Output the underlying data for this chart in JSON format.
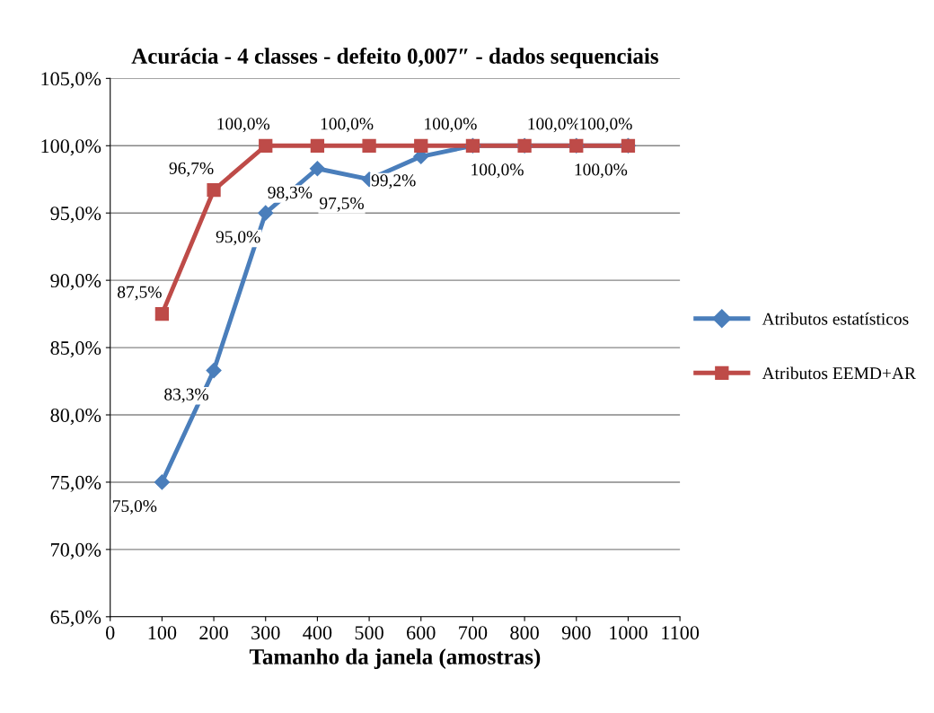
{
  "chart_data": {
    "type": "line",
    "title": "Acurácia - 4 classes - defeito 0,007″ - dados sequenciais",
    "xlabel": "Tamanho da janela (amostras)",
    "x": [
      100,
      200,
      300,
      400,
      500,
      600,
      700,
      800,
      900,
      1000
    ],
    "series": [
      {
        "name": "Atributos estatísticos",
        "color": "#4a7ebb",
        "marker": "diamond",
        "values": [
          75.0,
          83.3,
          95.0,
          98.3,
          97.5,
          99.2,
          100.0,
          100.0,
          100.0,
          100.0
        ],
        "value_labels": [
          "75,0%",
          "83,3%",
          "95,0%",
          "98,3%",
          "97,5%",
          "99,2%",
          null,
          "100,0%",
          null,
          "100,0%"
        ]
      },
      {
        "name": "Atributos EEMD+AR",
        "color": "#be4b48",
        "marker": "square",
        "values": [
          87.5,
          96.7,
          100.0,
          100.0,
          100.0,
          100.0,
          100.0,
          100.0,
          100.0,
          100.0
        ],
        "value_labels": [
          "87,5%",
          "96,7%",
          "100,0%",
          null,
          "100,0%",
          null,
          "100,0%",
          null,
          "100,0%",
          "100,0%"
        ]
      }
    ],
    "xlim": [
      0,
      1100
    ],
    "xticks": [
      0,
      100,
      200,
      300,
      400,
      500,
      600,
      700,
      800,
      900,
      1000,
      1100
    ],
    "ylim": [
      65,
      105
    ],
    "yticks": [
      {
        "value": 65,
        "label": "65,0%"
      },
      {
        "value": 70,
        "label": "70,0%"
      },
      {
        "value": 75,
        "label": "75,0%"
      },
      {
        "value": 80,
        "label": "80,0%"
      },
      {
        "value": 85,
        "label": "85,0%"
      },
      {
        "value": 90,
        "label": "90,0%"
      },
      {
        "value": 95,
        "label": "95,0%"
      },
      {
        "value": 100,
        "label": "100,0%"
      },
      {
        "value": 105,
        "label": "105,0%"
      }
    ],
    "grid": "y",
    "legend": "right",
    "line_style": "solid"
  }
}
